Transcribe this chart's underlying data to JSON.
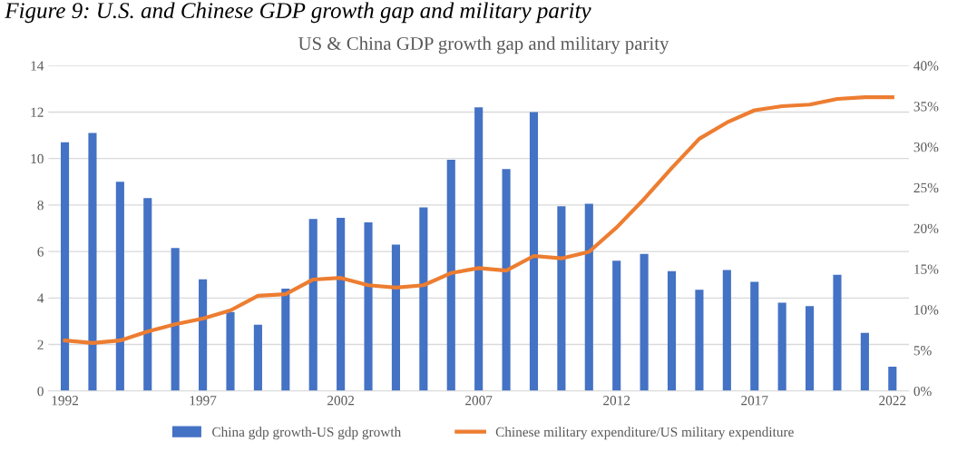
{
  "chart_data": {
    "type": "bar",
    "title": "US & China GDP growth gap and military parity",
    "annotations": [
      "Figure 9: U.S. and Chinese GDP growth gap and military parity"
    ],
    "categories": [
      "1992",
      null,
      null,
      null,
      null,
      "1997",
      null,
      null,
      null,
      null,
      "2002",
      null,
      null,
      null,
      null,
      "2007",
      null,
      null,
      null,
      null,
      "2012",
      null,
      null,
      null,
      null,
      "2017",
      null,
      null,
      null,
      null,
      "2022"
    ],
    "series": [
      {
        "name": "China gdp growth-US gdp growth",
        "color": "#4472c4",
        "values": [
          10.7,
          11.1,
          9.0,
          8.3,
          6.15,
          4.8,
          3.4,
          2.85,
          4.4,
          7.4,
          7.45,
          7.25,
          6.3,
          7.9,
          9.95,
          12.2,
          9.55,
          12.0,
          7.95,
          8.05,
          5.6,
          5.9,
          5.15,
          4.35,
          5.2,
          4.7,
          3.8,
          3.65,
          5.0,
          2.5,
          1.05
        ]
      },
      {
        "name": "Chinese military expenditure/US military expenditure",
        "color": "#ed7d31",
        "type": "line",
        "axis": "y2",
        "values": [
          6.2,
          5.9,
          6.2,
          7.3,
          8.2,
          8.9,
          9.9,
          11.7,
          11.9,
          13.7,
          13.9,
          13.0,
          12.7,
          13.0,
          14.5,
          15.1,
          14.8,
          16.6,
          16.3,
          17.1,
          20.1,
          23.6,
          27.4,
          31.0,
          33.0,
          34.5,
          35.0,
          35.2,
          35.9,
          36.1,
          36.1
        ]
      }
    ],
    "ylim": [
      0,
      14
    ],
    "yticks": [
      0,
      2,
      4,
      6,
      8,
      10,
      12,
      14
    ],
    "y2lim": [
      0,
      40
    ],
    "y2ticks": [
      {
        "value": 0,
        "label": "0%"
      },
      {
        "value": 5,
        "label": "5%"
      },
      {
        "value": 10,
        "label": "10%"
      },
      {
        "value": 15,
        "label": "15%"
      },
      {
        "value": 20,
        "label": "20%"
      },
      {
        "value": 25,
        "label": "25%"
      },
      {
        "value": 30,
        "label": "30%"
      },
      {
        "value": 35,
        "label": "35%"
      },
      {
        "value": 40,
        "label": "40%"
      }
    ],
    "grid": "y",
    "legend": "bottom"
  }
}
